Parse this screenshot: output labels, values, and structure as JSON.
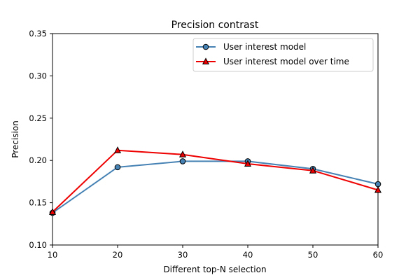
{
  "chart_data": {
    "type": "line",
    "title": "Precision contrast",
    "xlabel": "Different top-N selection",
    "ylabel": "Precision",
    "x": [
      10,
      20,
      30,
      40,
      50,
      60
    ],
    "xlim": [
      10,
      60
    ],
    "ylim": [
      0.1,
      0.35
    ],
    "xticks": [
      "10",
      "20",
      "30",
      "40",
      "50",
      "60"
    ],
    "yticks": [
      "0.10",
      "0.15",
      "0.20",
      "0.25",
      "0.30",
      "0.35"
    ],
    "grid": false,
    "legend_position": "top-right",
    "series": [
      {
        "name": "User interest model",
        "marker": "circle",
        "color": "#4682b4",
        "values": [
          0.138,
          0.192,
          0.199,
          0.199,
          0.19,
          0.172
        ]
      },
      {
        "name": "User interest model over time",
        "marker": "triangle",
        "color": "#ee0000",
        "values": [
          0.139,
          0.212,
          0.207,
          0.196,
          0.188,
          0.165
        ]
      }
    ]
  }
}
